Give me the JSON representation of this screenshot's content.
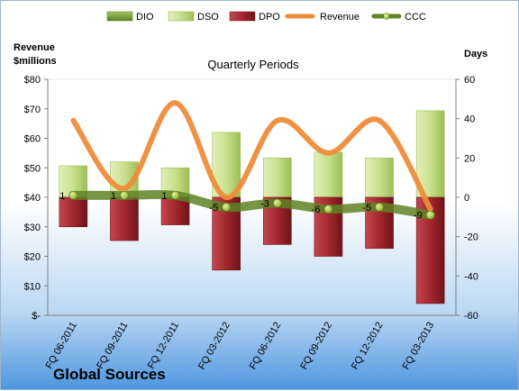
{
  "chart_data": {
    "type": "bar",
    "title": "Quarterly Periods",
    "company": "Global Sources",
    "left_axis_label": [
      "Revenue",
      "$millions"
    ],
    "right_axis_label": "Days",
    "categories": [
      "FQ 06-2011",
      "FQ 09-2011",
      "FQ 12-2011",
      "FQ 03-2012",
      "FQ 06-2012",
      "FQ 09-2012",
      "FQ 12-2012",
      "FQ 03-2013"
    ],
    "left_axis": {
      "ylim": [
        0,
        80
      ],
      "ticks": [
        0,
        10,
        20,
        30,
        40,
        50,
        60,
        70,
        80
      ],
      "tick_labels": [
        "$-",
        "$10",
        "$20",
        "$30",
        "$40",
        "$50",
        "$60",
        "$70",
        "$80"
      ]
    },
    "right_axis": {
      "ylim": [
        -60,
        60
      ],
      "ticks": [
        -60,
        -40,
        -20,
        0,
        20,
        40,
        60
      ],
      "tick_labels": [
        "-60",
        "-40",
        "-20",
        "0",
        "20",
        "40",
        "60"
      ]
    },
    "legend_position": "top",
    "series": [
      {
        "name": "DIO",
        "axis": "right",
        "kind": "bar",
        "color": "#6e9a2e",
        "values": [
          0,
          0,
          0,
          0,
          0,
          0,
          0,
          0
        ]
      },
      {
        "name": "DSO",
        "axis": "right",
        "kind": "bar",
        "color": "#c8e08c",
        "values": [
          16,
          18,
          15,
          33,
          20,
          23,
          20,
          44
        ]
      },
      {
        "name": "DPO",
        "axis": "right",
        "kind": "bar",
        "color": "#a3272e",
        "values": [
          -15,
          -22,
          -14,
          -37,
          -24,
          -30,
          -26,
          -54
        ]
      },
      {
        "name": "Revenue",
        "axis": "left",
        "kind": "line",
        "color": "#ef8c3a",
        "values": [
          66,
          43,
          72,
          40,
          66,
          55,
          66,
          36
        ]
      },
      {
        "name": "CCC",
        "axis": "right",
        "kind": "line",
        "color": "#5e8226",
        "values": [
          1,
          1,
          1,
          -5,
          -3,
          -6,
          -5,
          -9
        ],
        "labels": [
          "1",
          "1",
          "1",
          "-5",
          "-3",
          "-6",
          "-5",
          "-9"
        ]
      }
    ]
  }
}
